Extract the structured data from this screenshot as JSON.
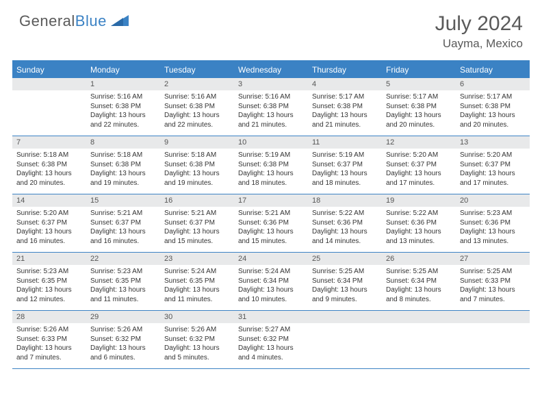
{
  "brand": {
    "part1": "General",
    "part2": "Blue"
  },
  "title": "July 2024",
  "location": "Uayma, Mexico",
  "colors": {
    "header_bg": "#3b82c4",
    "header_text": "#ffffff",
    "daynum_bg": "#e8e9ea",
    "text": "#333333",
    "brand_gray": "#5a5a5a",
    "brand_blue": "#3b82c4"
  },
  "weekdays": [
    "Sunday",
    "Monday",
    "Tuesday",
    "Wednesday",
    "Thursday",
    "Friday",
    "Saturday"
  ],
  "weeks": [
    [
      {
        "day": "",
        "sunrise": "",
        "sunset": "",
        "daylight": ""
      },
      {
        "day": "1",
        "sunrise": "Sunrise: 5:16 AM",
        "sunset": "Sunset: 6:38 PM",
        "daylight": "Daylight: 13 hours and 22 minutes."
      },
      {
        "day": "2",
        "sunrise": "Sunrise: 5:16 AM",
        "sunset": "Sunset: 6:38 PM",
        "daylight": "Daylight: 13 hours and 22 minutes."
      },
      {
        "day": "3",
        "sunrise": "Sunrise: 5:16 AM",
        "sunset": "Sunset: 6:38 PM",
        "daylight": "Daylight: 13 hours and 21 minutes."
      },
      {
        "day": "4",
        "sunrise": "Sunrise: 5:17 AM",
        "sunset": "Sunset: 6:38 PM",
        "daylight": "Daylight: 13 hours and 21 minutes."
      },
      {
        "day": "5",
        "sunrise": "Sunrise: 5:17 AM",
        "sunset": "Sunset: 6:38 PM",
        "daylight": "Daylight: 13 hours and 20 minutes."
      },
      {
        "day": "6",
        "sunrise": "Sunrise: 5:17 AM",
        "sunset": "Sunset: 6:38 PM",
        "daylight": "Daylight: 13 hours and 20 minutes."
      }
    ],
    [
      {
        "day": "7",
        "sunrise": "Sunrise: 5:18 AM",
        "sunset": "Sunset: 6:38 PM",
        "daylight": "Daylight: 13 hours and 20 minutes."
      },
      {
        "day": "8",
        "sunrise": "Sunrise: 5:18 AM",
        "sunset": "Sunset: 6:38 PM",
        "daylight": "Daylight: 13 hours and 19 minutes."
      },
      {
        "day": "9",
        "sunrise": "Sunrise: 5:18 AM",
        "sunset": "Sunset: 6:38 PM",
        "daylight": "Daylight: 13 hours and 19 minutes."
      },
      {
        "day": "10",
        "sunrise": "Sunrise: 5:19 AM",
        "sunset": "Sunset: 6:38 PM",
        "daylight": "Daylight: 13 hours and 18 minutes."
      },
      {
        "day": "11",
        "sunrise": "Sunrise: 5:19 AM",
        "sunset": "Sunset: 6:37 PM",
        "daylight": "Daylight: 13 hours and 18 minutes."
      },
      {
        "day": "12",
        "sunrise": "Sunrise: 5:20 AM",
        "sunset": "Sunset: 6:37 PM",
        "daylight": "Daylight: 13 hours and 17 minutes."
      },
      {
        "day": "13",
        "sunrise": "Sunrise: 5:20 AM",
        "sunset": "Sunset: 6:37 PM",
        "daylight": "Daylight: 13 hours and 17 minutes."
      }
    ],
    [
      {
        "day": "14",
        "sunrise": "Sunrise: 5:20 AM",
        "sunset": "Sunset: 6:37 PM",
        "daylight": "Daylight: 13 hours and 16 minutes."
      },
      {
        "day": "15",
        "sunrise": "Sunrise: 5:21 AM",
        "sunset": "Sunset: 6:37 PM",
        "daylight": "Daylight: 13 hours and 16 minutes."
      },
      {
        "day": "16",
        "sunrise": "Sunrise: 5:21 AM",
        "sunset": "Sunset: 6:37 PM",
        "daylight": "Daylight: 13 hours and 15 minutes."
      },
      {
        "day": "17",
        "sunrise": "Sunrise: 5:21 AM",
        "sunset": "Sunset: 6:36 PM",
        "daylight": "Daylight: 13 hours and 15 minutes."
      },
      {
        "day": "18",
        "sunrise": "Sunrise: 5:22 AM",
        "sunset": "Sunset: 6:36 PM",
        "daylight": "Daylight: 13 hours and 14 minutes."
      },
      {
        "day": "19",
        "sunrise": "Sunrise: 5:22 AM",
        "sunset": "Sunset: 6:36 PM",
        "daylight": "Daylight: 13 hours and 13 minutes."
      },
      {
        "day": "20",
        "sunrise": "Sunrise: 5:23 AM",
        "sunset": "Sunset: 6:36 PM",
        "daylight": "Daylight: 13 hours and 13 minutes."
      }
    ],
    [
      {
        "day": "21",
        "sunrise": "Sunrise: 5:23 AM",
        "sunset": "Sunset: 6:35 PM",
        "daylight": "Daylight: 13 hours and 12 minutes."
      },
      {
        "day": "22",
        "sunrise": "Sunrise: 5:23 AM",
        "sunset": "Sunset: 6:35 PM",
        "daylight": "Daylight: 13 hours and 11 minutes."
      },
      {
        "day": "23",
        "sunrise": "Sunrise: 5:24 AM",
        "sunset": "Sunset: 6:35 PM",
        "daylight": "Daylight: 13 hours and 11 minutes."
      },
      {
        "day": "24",
        "sunrise": "Sunrise: 5:24 AM",
        "sunset": "Sunset: 6:34 PM",
        "daylight": "Daylight: 13 hours and 10 minutes."
      },
      {
        "day": "25",
        "sunrise": "Sunrise: 5:25 AM",
        "sunset": "Sunset: 6:34 PM",
        "daylight": "Daylight: 13 hours and 9 minutes."
      },
      {
        "day": "26",
        "sunrise": "Sunrise: 5:25 AM",
        "sunset": "Sunset: 6:34 PM",
        "daylight": "Daylight: 13 hours and 8 minutes."
      },
      {
        "day": "27",
        "sunrise": "Sunrise: 5:25 AM",
        "sunset": "Sunset: 6:33 PM",
        "daylight": "Daylight: 13 hours and 7 minutes."
      }
    ],
    [
      {
        "day": "28",
        "sunrise": "Sunrise: 5:26 AM",
        "sunset": "Sunset: 6:33 PM",
        "daylight": "Daylight: 13 hours and 7 minutes."
      },
      {
        "day": "29",
        "sunrise": "Sunrise: 5:26 AM",
        "sunset": "Sunset: 6:32 PM",
        "daylight": "Daylight: 13 hours and 6 minutes."
      },
      {
        "day": "30",
        "sunrise": "Sunrise: 5:26 AM",
        "sunset": "Sunset: 6:32 PM",
        "daylight": "Daylight: 13 hours and 5 minutes."
      },
      {
        "day": "31",
        "sunrise": "Sunrise: 5:27 AM",
        "sunset": "Sunset: 6:32 PM",
        "daylight": "Daylight: 13 hours and 4 minutes."
      },
      {
        "day": "",
        "sunrise": "",
        "sunset": "",
        "daylight": ""
      },
      {
        "day": "",
        "sunrise": "",
        "sunset": "",
        "daylight": ""
      },
      {
        "day": "",
        "sunrise": "",
        "sunset": "",
        "daylight": ""
      }
    ]
  ]
}
